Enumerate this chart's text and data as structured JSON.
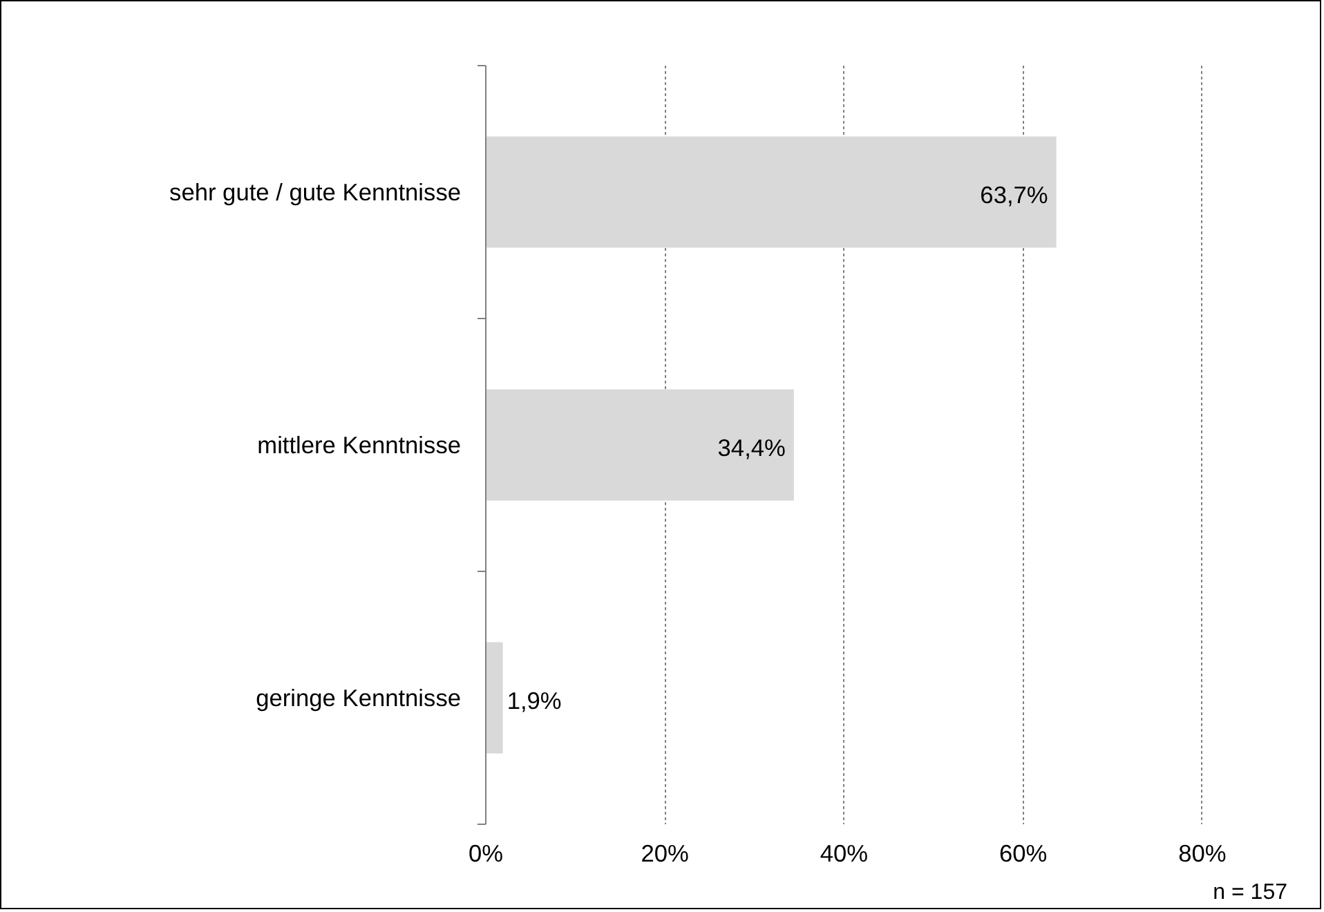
{
  "chart_data": {
    "type": "bar",
    "orientation": "horizontal",
    "categories": [
      "sehr gute / gute Kenntnisse",
      "mittlere Kenntnisse",
      "geringe Kenntnisse"
    ],
    "values": [
      63.7,
      34.4,
      1.9
    ],
    "value_labels": [
      "63,7%",
      "34,4%",
      "1,9%"
    ],
    "color": "#d9d9d9",
    "xlim": [
      0,
      80
    ],
    "xticks": [
      {
        "value": 0,
        "label": "0%"
      },
      {
        "value": 20,
        "label": "20%"
      },
      {
        "value": 40,
        "label": "40%"
      },
      {
        "value": 60,
        "label": "60%"
      },
      {
        "value": 80,
        "label": "80%"
      }
    ],
    "grid": "x",
    "annotations": [
      "n = 157"
    ]
  }
}
